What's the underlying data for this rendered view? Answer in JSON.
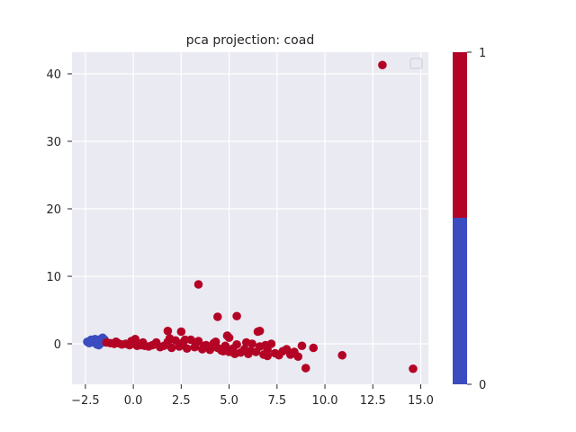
{
  "chart_data": {
    "type": "scatter",
    "title": "pca projection: coad",
    "xlabel": "",
    "ylabel": "",
    "xlim": [
      -3.2,
      15.4
    ],
    "ylim": [
      -6.0,
      43.2
    ],
    "xticks": [
      -2.5,
      0.0,
      2.5,
      5.0,
      7.5,
      10.0,
      12.5,
      15.0
    ],
    "xtick_labels": [
      "−2.5",
      "0.0",
      "2.5",
      "5.0",
      "7.5",
      "10.0",
      "12.5",
      "15.0"
    ],
    "yticks": [
      0,
      10,
      20,
      30,
      40
    ],
    "ytick_labels": [
      "0",
      "10",
      "20",
      "30",
      "40"
    ],
    "grid": true,
    "legend": "top-right, empty",
    "background": "#eaeaf2",
    "colors": {
      "class0": "#3b4cc0",
      "class1": "#b40426"
    },
    "colorbar": {
      "ticks": [
        0,
        1
      ],
      "tick_labels": [
        "0",
        "1"
      ],
      "segments": [
        {
          "from": 0,
          "to": 0.5,
          "color": "#3b4cc0"
        },
        {
          "from": 0.5,
          "to": 1,
          "color": "#b40426"
        }
      ]
    },
    "series": [
      {
        "label": 0,
        "points": [
          [
            -2.4,
            0.3
          ],
          [
            -2.2,
            0.2
          ],
          [
            -2.0,
            0.4
          ],
          [
            -1.9,
            0.1
          ],
          [
            -1.8,
            0.6
          ],
          [
            -2.1,
            0.5
          ],
          [
            -1.7,
            0.3
          ],
          [
            -1.6,
            0.9
          ],
          [
            -1.5,
            0.6
          ],
          [
            -1.9,
            -0.1
          ],
          [
            -2.3,
            0.1
          ],
          [
            -1.6,
            0.2
          ],
          [
            -2.0,
            0.7
          ],
          [
            -1.8,
            -0.2
          ],
          [
            -2.2,
            0.6
          ],
          [
            -1.7,
            0.7
          ]
        ]
      },
      {
        "label": 1,
        "points": [
          [
            13.0,
            41.3
          ],
          [
            3.4,
            8.8
          ],
          [
            4.4,
            4.0
          ],
          [
            5.4,
            4.1
          ],
          [
            6.5,
            1.8
          ],
          [
            6.6,
            1.9
          ],
          [
            1.8,
            1.9
          ],
          [
            2.5,
            1.8
          ],
          [
            4.9,
            1.2
          ],
          [
            5.0,
            0.9
          ],
          [
            10.9,
            -1.7
          ],
          [
            14.6,
            -3.7
          ],
          [
            9.0,
            -3.6
          ],
          [
            -1.4,
            0.2
          ],
          [
            -1.2,
            0.1
          ],
          [
            -1.0,
            0.0
          ],
          [
            -0.8,
            0.1
          ],
          [
            -0.6,
            -0.1
          ],
          [
            -0.4,
            0.0
          ],
          [
            -0.2,
            -0.2
          ],
          [
            0.0,
            0.0
          ],
          [
            0.1,
            0.7
          ],
          [
            0.2,
            -0.3
          ],
          [
            0.4,
            -0.2
          ],
          [
            0.6,
            -0.3
          ],
          [
            0.8,
            -0.4
          ],
          [
            1.0,
            -0.2
          ],
          [
            1.2,
            0.2
          ],
          [
            1.4,
            -0.5
          ],
          [
            1.6,
            -0.3
          ],
          [
            1.8,
            0.3
          ],
          [
            2.0,
            -0.6
          ],
          [
            2.2,
            0.5
          ],
          [
            2.4,
            -0.4
          ],
          [
            2.6,
            0.2
          ],
          [
            2.8,
            -0.7
          ],
          [
            3.0,
            0.6
          ],
          [
            3.2,
            -0.5
          ],
          [
            3.4,
            0.4
          ],
          [
            3.6,
            -0.8
          ],
          [
            3.8,
            -0.2
          ],
          [
            4.0,
            -0.9
          ],
          [
            4.2,
            0.1
          ],
          [
            4.4,
            -0.6
          ],
          [
            4.6,
            -1.0
          ],
          [
            4.8,
            -0.3
          ],
          [
            5.0,
            -1.2
          ],
          [
            5.2,
            -0.7
          ],
          [
            5.4,
            -0.1
          ],
          [
            5.6,
            -1.3
          ],
          [
            5.8,
            -0.8
          ],
          [
            6.0,
            -1.5
          ],
          [
            6.2,
            0.0
          ],
          [
            6.4,
            -1.2
          ],
          [
            6.6,
            -0.4
          ],
          [
            6.8,
            -1.6
          ],
          [
            7.0,
            -0.9
          ],
          [
            7.2,
            0.0
          ],
          [
            7.4,
            -1.4
          ],
          [
            7.6,
            -1.7
          ],
          [
            7.8,
            -1.1
          ],
          [
            8.0,
            -0.8
          ],
          [
            8.2,
            -1.6
          ],
          [
            8.4,
            -1.2
          ],
          [
            8.6,
            -1.9
          ],
          [
            8.8,
            -0.3
          ],
          [
            9.4,
            -0.6
          ],
          [
            7.0,
            -1.8
          ],
          [
            6.9,
            -0.2
          ],
          [
            5.9,
            0.2
          ],
          [
            4.3,
            0.3
          ],
          [
            3.3,
            0.2
          ],
          [
            2.7,
            0.6
          ],
          [
            1.9,
            0.8
          ],
          [
            1.1,
            -0.1
          ],
          [
            0.5,
            0.2
          ],
          [
            -0.1,
            0.4
          ],
          [
            -0.9,
            0.3
          ],
          [
            5.3,
            -1.5
          ],
          [
            6.1,
            -1.1
          ],
          [
            4.7,
            -1.1
          ],
          [
            3.7,
            -0.3
          ]
        ]
      }
    ]
  }
}
